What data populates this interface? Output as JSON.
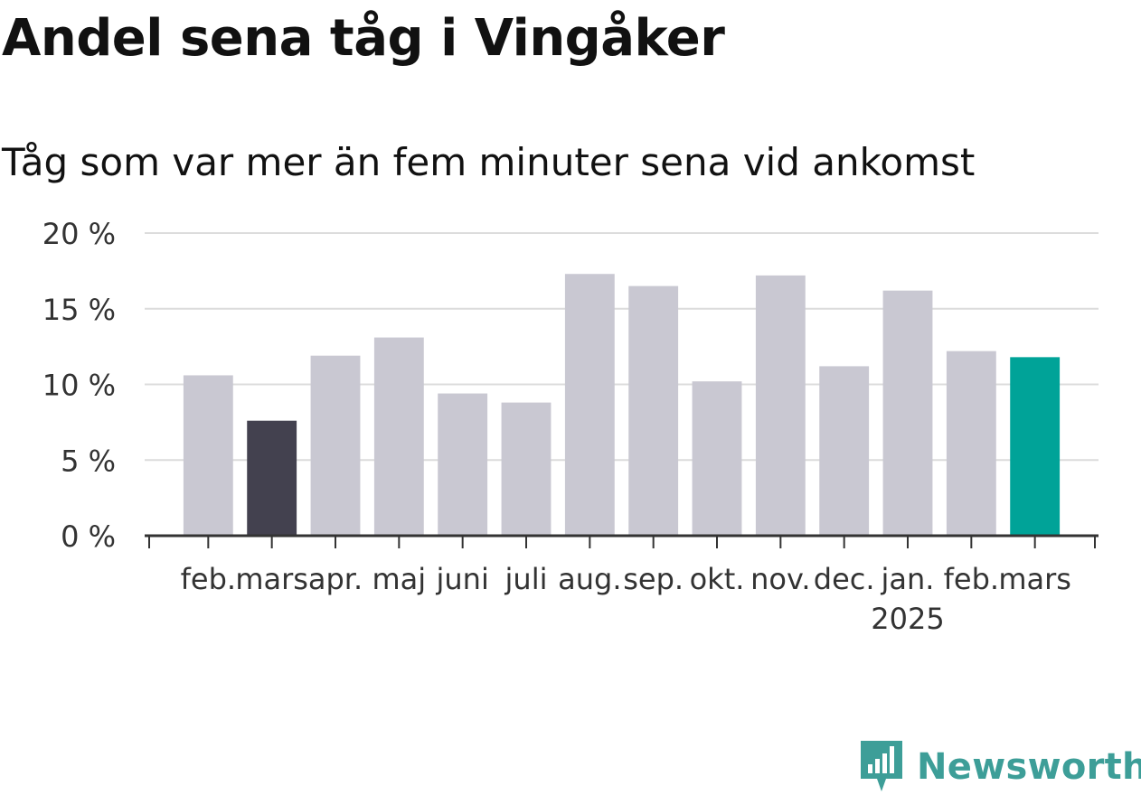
{
  "title": "Andel sena tåg i Vingåker",
  "subtitle": "Tåg som var mer än fem minuter sena vid ankomst",
  "brand": "Newsworthy",
  "colors": {
    "bar_default": "#c9c8d2",
    "bar_highlight_prev": "#43414f",
    "bar_highlight_current": "#00a398",
    "grid": "#dcdcdc",
    "axis": "#333333",
    "brand": "#3d9e98"
  },
  "chart_data": {
    "type": "bar",
    "title": "Andel sena tåg i Vingåker",
    "subtitle": "Tåg som var mer än fem minuter sena vid ankomst",
    "categories": [
      "feb.",
      "mars",
      "apr.",
      "maj",
      "juni",
      "juli",
      "aug.",
      "sep.",
      "okt.",
      "nov.",
      "dec.",
      "jan.",
      "feb.",
      "mars"
    ],
    "year_label": "2025",
    "year_label_category_index": 11,
    "values": [
      10.6,
      7.6,
      11.9,
      13.1,
      9.4,
      8.8,
      17.3,
      16.5,
      10.2,
      17.2,
      11.2,
      16.2,
      12.2,
      11.8
    ],
    "highlight": {
      "1": "bar_highlight_prev",
      "13": "bar_highlight_current"
    },
    "y_ticks": [
      "0 %",
      "5 %",
      "10 %",
      "15 %",
      "20 %"
    ],
    "y_tick_values": [
      0,
      5,
      10,
      15,
      20
    ],
    "ylim": [
      0,
      20
    ],
    "unit": "%",
    "grid": true,
    "legend": "none"
  }
}
